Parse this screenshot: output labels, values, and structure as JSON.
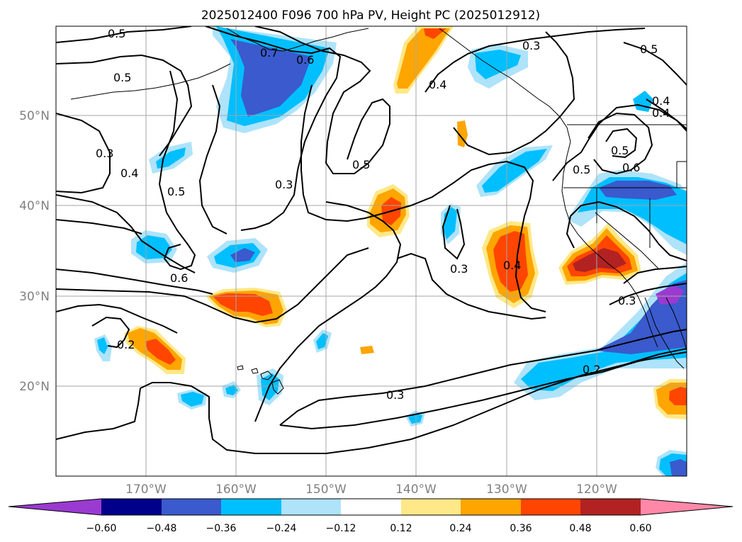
{
  "title": "2025012400 F096 700 hPa PV, Height PC (2025012912)",
  "colors": {
    "c_lt_neg_060": "#9a3ad0",
    "c_neg_060_048": "#00008b",
    "c_neg_048_036": "#3a5acd",
    "c_neg_036_024": "#00bfff",
    "c_neg_024_012": "#aee3fa",
    "c_neutral": "#ffffff",
    "c_012_024": "#ffe887",
    "c_024_036": "#ffa500",
    "c_036_048": "#ff4500",
    "c_048_060": "#b22222",
    "c_gt_060": "#ff88a8"
  },
  "map": {
    "projection": "lat-lon",
    "lon_range": [
      -180,
      -110
    ],
    "lat_range": [
      10,
      60
    ],
    "lat_ticks": [
      "50°N",
      "40°N",
      "30°N",
      "20°N"
    ],
    "lon_ticks": [
      "170°W",
      "160°W",
      "150°W",
      "140°W",
      "130°W",
      "120°W"
    ],
    "grid": true
  },
  "colorbar": {
    "orientation": "horizontal",
    "extend": "both",
    "ticks": [
      "−0.60",
      "−0.48",
      "−0.36",
      "−0.24",
      "−0.12",
      "0.12",
      "0.24",
      "0.36",
      "0.48",
      "0.60"
    ]
  },
  "contour_labels": [
    "0.5",
    "0.7",
    "0.6",
    "0.5",
    "0.3",
    "0.4",
    "0.5",
    "0.3",
    "0.5",
    "0.4",
    "0.3",
    "0.6",
    "0.2",
    "0.4",
    "0.3",
    "0.4",
    "0.5",
    "0.6",
    "0.5",
    "0.2",
    "0.3",
    "0.3",
    "0.5",
    "0.4"
  ]
}
